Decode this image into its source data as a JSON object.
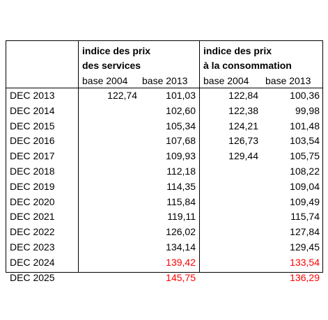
{
  "headers": {
    "services": [
      "indice des prix",
      "des services"
    ],
    "conso": [
      "indice des prix",
      "à la consommation"
    ],
    "bases": [
      "base 2004",
      "base 2013",
      "base 2004",
      "base 2013"
    ]
  },
  "rows": [
    {
      "label": "DEC 2013",
      "s04": "122,74",
      "s13": "101,03",
      "c04": "122,84",
      "c13": "100,36"
    },
    {
      "label": "DEC 2014",
      "s04": "",
      "s13": "102,60",
      "c04": "122,38",
      "c13": "99,98"
    },
    {
      "label": "DEC 2015",
      "s04": "",
      "s13": "105,34",
      "c04": "124,21",
      "c13": "101,48"
    },
    {
      "label": "DEC 2016",
      "s04": "",
      "s13": "107,68",
      "c04": "126,73",
      "c13": "103,54"
    },
    {
      "label": "DEC 2017",
      "s04": "",
      "s13": "109,93",
      "c04": "129,44",
      "c13": "105,75"
    },
    {
      "label": "DEC 2018",
      "s04": "",
      "s13": "112,18",
      "c04": "",
      "c13": "108,22"
    },
    {
      "label": "DEC 2019",
      "s04": "",
      "s13": "114,35",
      "c04": "",
      "c13": "109,04"
    },
    {
      "label": "DEC 2020",
      "s04": "",
      "s13": "115,84",
      "c04": "",
      "c13": "109,49"
    },
    {
      "label": "DEC 2021",
      "s04": "",
      "s13": "119,11",
      "c04": "",
      "c13": "115,74"
    },
    {
      "label": "DEC 2022",
      "s04": "",
      "s13": "126,02",
      "c04": "",
      "c13": "127,84"
    },
    {
      "label": "DEC 2023",
      "s04": "",
      "s13": "134,14",
      "c04": "",
      "c13": "129,45"
    },
    {
      "label": "DEC 2024",
      "s04": "",
      "s13": "139,42",
      "c04": "",
      "c13": "133,54",
      "highlight": true
    },
    {
      "label": "DEC 2025",
      "s04": "",
      "s13": "145,75",
      "c04": "",
      "c13": "136,29",
      "highlight": true
    }
  ],
  "colors": {
    "highlight": "#ff0000",
    "text": "#000000",
    "border": "#000000"
  }
}
